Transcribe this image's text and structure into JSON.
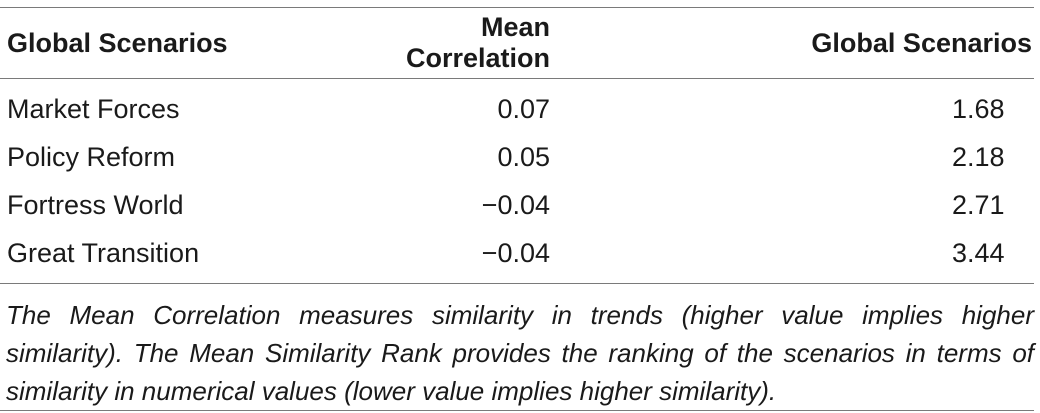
{
  "table": {
    "headers": [
      "Global Scenarios",
      "Mean Correlation",
      "Global Scenarios"
    ],
    "rows": [
      {
        "scenario": "Market Forces",
        "mean_correlation": "0.07",
        "rank": "1.68"
      },
      {
        "scenario": "Policy Reform",
        "mean_correlation": "0.05",
        "rank": "2.18"
      },
      {
        "scenario": "Fortress World",
        "mean_correlation": "−0.04",
        "rank": "2.71"
      },
      {
        "scenario": "Great Transition",
        "mean_correlation": "−0.04",
        "rank": "3.44"
      }
    ]
  },
  "footnote": "The Mean Correlation measures similarity in trends (higher value implies higher similarity). The Mean Similarity Rank provides the ranking of the scenarios in terms of similarity in numerical values (lower value implies higher similarity)."
}
